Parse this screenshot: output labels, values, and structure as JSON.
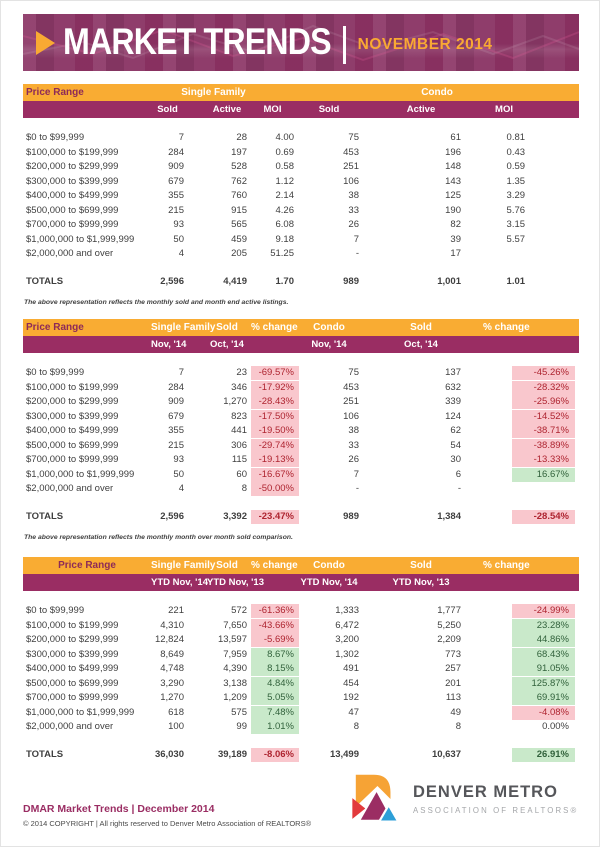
{
  "banner": {
    "title": "MARKET TRENDS",
    "divider": "|",
    "period": "NOVEMBER 2014"
  },
  "colors": {
    "banner_bg": "#8D3968",
    "accent_orange": "#F9AC33",
    "brand_purple": "#9A2D63",
    "negative_bg": "#F9C7CD",
    "negative_text": "#AE2430",
    "positive_bg": "#C9E9CA",
    "positive_text": "#32623C"
  },
  "tables": [
    {
      "name": "monthly-inventory",
      "head1": {
        "price_range": "Price Range",
        "single_family": "Single Family",
        "condo": "Condo"
      },
      "head2": [
        "Sold",
        "Active",
        "MOI",
        "Sold",
        "Active",
        "MOI"
      ],
      "rows": [
        [
          "$0 to $99,999",
          "7",
          "28",
          "4.00",
          "75",
          "61",
          "0.81"
        ],
        [
          "$100,000 to $199,999",
          "284",
          "197",
          "0.69",
          "453",
          "196",
          "0.43"
        ],
        [
          "$200,000 to $299,999",
          "909",
          "528",
          "0.58",
          "251",
          "148",
          "0.59"
        ],
        [
          "$300,000 to $399,999",
          "679",
          "762",
          "1.12",
          "106",
          "143",
          "1.35"
        ],
        [
          "$400,000 to $499,999",
          "355",
          "760",
          "2.14",
          "38",
          "125",
          "3.29"
        ],
        [
          "$500,000 to $699,999",
          "215",
          "915",
          "4.26",
          "33",
          "190",
          "5.76"
        ],
        [
          "$700,000 to $999,999",
          "93",
          "565",
          "6.08",
          "26",
          "82",
          "3.15"
        ],
        [
          "$1,000,000 to $1,999,999",
          "50",
          "459",
          "9.18",
          "7",
          "39",
          "5.57"
        ],
        [
          "$2,000,000 and over",
          "4",
          "205",
          "51.25",
          "-",
          "17",
          ""
        ]
      ],
      "totals": [
        "TOTALS",
        "2,596",
        "4,419",
        "1.70",
        "989",
        "1,001",
        "1.01"
      ],
      "footnote": "The above representation reflects the monthly sold and month end active listings."
    },
    {
      "name": "month-over-month",
      "head1": [
        "Price Range",
        "Single Family",
        "Sold",
        "% change",
        "Condo",
        "Sold",
        "% change"
      ],
      "head2": [
        "",
        "Nov, '14",
        "Oct, '14",
        "",
        "Nov, '14",
        "Oct, '14",
        ""
      ],
      "rows": [
        [
          "$0 to $99,999",
          "7",
          "23",
          {
            "v": "-69.57%",
            "tone": "neg"
          },
          "75",
          "137",
          {
            "v": "-45.26%",
            "tone": "neg"
          }
        ],
        [
          "$100,000 to $199,999",
          "284",
          "346",
          {
            "v": "-17.92%",
            "tone": "neg"
          },
          "453",
          "632",
          {
            "v": "-28.32%",
            "tone": "neg"
          }
        ],
        [
          "$200,000 to $299,999",
          "909",
          "1,270",
          {
            "v": "-28.43%",
            "tone": "neg"
          },
          "251",
          "339",
          {
            "v": "-25.96%",
            "tone": "neg"
          }
        ],
        [
          "$300,000 to $399,999",
          "679",
          "823",
          {
            "v": "-17.50%",
            "tone": "neg"
          },
          "106",
          "124",
          {
            "v": "-14.52%",
            "tone": "neg"
          }
        ],
        [
          "$400,000 to $499,999",
          "355",
          "441",
          {
            "v": "-19.50%",
            "tone": "neg"
          },
          "38",
          "62",
          {
            "v": "-38.71%",
            "tone": "neg"
          }
        ],
        [
          "$500,000 to $699,999",
          "215",
          "306",
          {
            "v": "-29.74%",
            "tone": "neg"
          },
          "33",
          "54",
          {
            "v": "-38.89%",
            "tone": "neg"
          }
        ],
        [
          "$700,000 to $999,999",
          "93",
          "115",
          {
            "v": "-19.13%",
            "tone": "neg"
          },
          "26",
          "30",
          {
            "v": "-13.33%",
            "tone": "neg"
          }
        ],
        [
          "$1,000,000 to $1,999,999",
          "50",
          "60",
          {
            "v": "-16.67%",
            "tone": "neg"
          },
          "7",
          "6",
          {
            "v": "16.67%",
            "tone": "pos"
          }
        ],
        [
          "$2,000,000 and over",
          "4",
          "8",
          {
            "v": "-50.00%",
            "tone": "neg"
          },
          "-",
          "-",
          ""
        ]
      ],
      "totals": [
        "TOTALS",
        "2,596",
        "3,392",
        {
          "v": "-23.47%",
          "tone": "neg"
        },
        "989",
        "1,384",
        {
          "v": "-28.54%",
          "tone": "neg"
        }
      ],
      "footnote": "The above representation reflects the monthly month over month sold comparison."
    },
    {
      "name": "year-to-date",
      "head1": [
        "Price Range",
        "Single Family",
        "Sold",
        "% change",
        "Condo",
        "Sold",
        "% change"
      ],
      "head2": [
        "",
        "YTD Nov, '14",
        "YTD Nov, '13",
        "",
        "YTD Nov, '14",
        "YTD Nov, '13",
        ""
      ],
      "rows": [
        [
          "$0 to $99,999",
          "221",
          "572",
          {
            "v": "-61.36%",
            "tone": "neg"
          },
          "1,333",
          "1,777",
          {
            "v": "-24.99%",
            "tone": "neg"
          }
        ],
        [
          "$100,000 to $199,999",
          "4,310",
          "7,650",
          {
            "v": "-43.66%",
            "tone": "neg"
          },
          "6,472",
          "5,250",
          {
            "v": "23.28%",
            "tone": "pos"
          }
        ],
        [
          "$200,000 to $299,999",
          "12,824",
          "13,597",
          {
            "v": "-5.69%",
            "tone": "neg"
          },
          "3,200",
          "2,209",
          {
            "v": "44.86%",
            "tone": "pos"
          }
        ],
        [
          "$300,000 to $399,999",
          "8,649",
          "7,959",
          {
            "v": "8.67%",
            "tone": "pos"
          },
          "1,302",
          "773",
          {
            "v": "68.43%",
            "tone": "pos"
          }
        ],
        [
          "$400,000 to $499,999",
          "4,748",
          "4,390",
          {
            "v": "8.15%",
            "tone": "pos"
          },
          "491",
          "257",
          {
            "v": "91.05%",
            "tone": "pos"
          }
        ],
        [
          "$500,000 to $699,999",
          "3,290",
          "3,138",
          {
            "v": "4.84%",
            "tone": "pos"
          },
          "454",
          "201",
          {
            "v": "125.87%",
            "tone": "pos"
          }
        ],
        [
          "$700,000 to $999,999",
          "1,270",
          "1,209",
          {
            "v": "5.05%",
            "tone": "pos"
          },
          "192",
          "113",
          {
            "v": "69.91%",
            "tone": "pos"
          }
        ],
        [
          "$1,000,000 to $1,999,999",
          "618",
          "575",
          {
            "v": "7.48%",
            "tone": "pos"
          },
          "47",
          "49",
          {
            "v": "-4.08%",
            "tone": "neg"
          }
        ],
        [
          "$2,000,000 and over",
          "100",
          "99",
          {
            "v": "1.01%",
            "tone": "pos"
          },
          "8",
          "8",
          {
            "v": "0.00%",
            "tone": "none"
          }
        ]
      ],
      "totals": [
        "TOTALS",
        "36,030",
        "39,189",
        {
          "v": "-8.06%",
          "tone": "neg"
        },
        "13,499",
        "10,637",
        {
          "v": "26.91%",
          "tone": "pos"
        }
      ],
      "footnote": ""
    }
  ],
  "footer": {
    "report_label": "DMAR Market Trends | December 2014",
    "copyright": "© 2014 COPYRIGHT | All rights reserved to Denver Metro Association of REALTORS®",
    "logo_title": "DENVER METRO",
    "logo_subtitle": "ASSOCIATION OF REALTORS®"
  }
}
